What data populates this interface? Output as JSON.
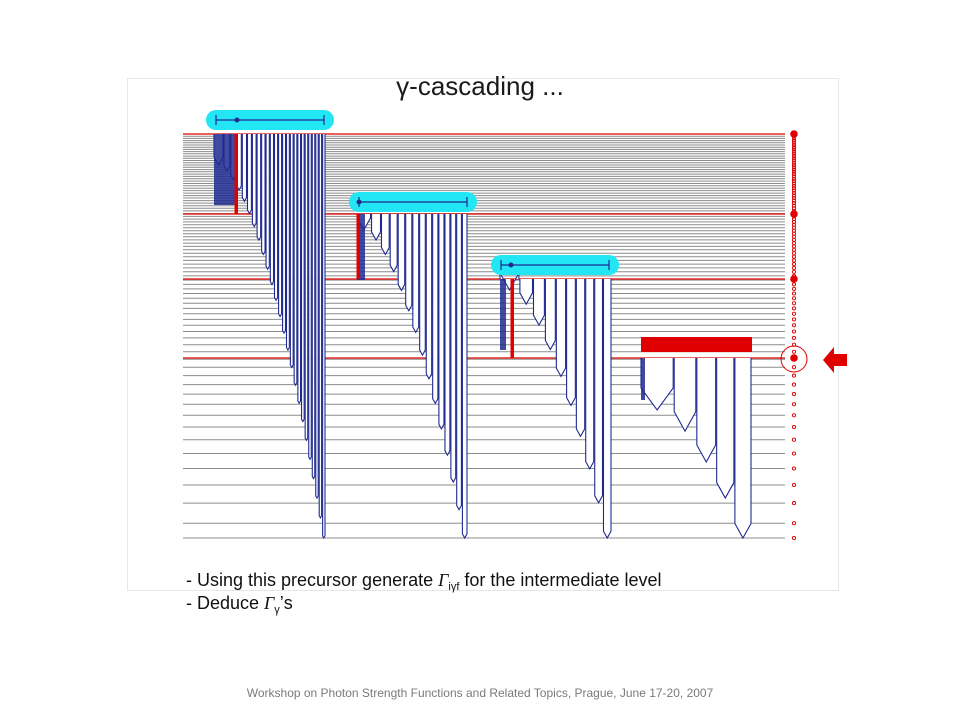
{
  "slide": {
    "title": "γ-cascading ...",
    "bullets": [
      {
        "prefix": "- Using this precursor generate ",
        "symbol": "Γ",
        "subscript": "iγf",
        "suffix": " for the intermediate level"
      },
      {
        "prefix": "- Deduce ",
        "symbol": "Γ",
        "subscript": "γ",
        "suffix": "’s"
      }
    ],
    "footer": "Workshop on Photon Strength Functions and Related Topics, Prague, June 17-20, 2007"
  },
  "colors": {
    "level_line": "#8c8c8c",
    "highlight_level": "#e00000",
    "transition": "#1f2a8f",
    "width_bar": "#23e6f5",
    "marker": "#e00000"
  }
}
